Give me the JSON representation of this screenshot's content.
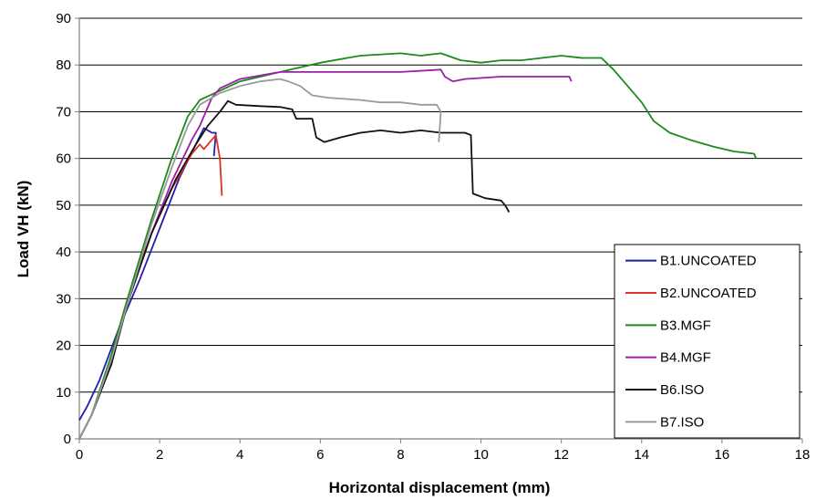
{
  "chart_data": {
    "type": "line",
    "xlabel": "Horizontal displacement (mm)",
    "ylabel": "Load VH (kN)",
    "xlim": [
      0,
      18
    ],
    "ylim": [
      0,
      90
    ],
    "xticks": [
      0,
      2,
      4,
      6,
      8,
      10,
      12,
      14,
      16,
      18
    ],
    "yticks": [
      0,
      10,
      20,
      30,
      40,
      50,
      60,
      70,
      80,
      90
    ],
    "grid": "horizontal",
    "legend_position": "bottom-right",
    "series": [
      {
        "name": "B1.UNCOATED",
        "color": "#1f1fa8",
        "points": [
          [
            0.0,
            4.0
          ],
          [
            0.2,
            7.0
          ],
          [
            0.5,
            12.5
          ],
          [
            1.0,
            24.0
          ],
          [
            1.5,
            34.0
          ],
          [
            2.0,
            45.0
          ],
          [
            2.5,
            56.0
          ],
          [
            2.9,
            63.0
          ],
          [
            3.1,
            66.5
          ],
          [
            3.3,
            65.5
          ],
          [
            3.4,
            65.5
          ],
          [
            3.35,
            60.5
          ]
        ]
      },
      {
        "name": "B2.UNCOATED",
        "color": "#e0302a",
        "points": [
          [
            0.0,
            0.0
          ],
          [
            0.3,
            5.0
          ],
          [
            0.7,
            14.0
          ],
          [
            1.2,
            30.0
          ],
          [
            1.8,
            44.0
          ],
          [
            2.3,
            53.5
          ],
          [
            2.8,
            61.0
          ],
          [
            3.0,
            63.0
          ],
          [
            3.1,
            62.0
          ],
          [
            3.3,
            64.0
          ],
          [
            3.4,
            65.0
          ],
          [
            3.5,
            60.0
          ],
          [
            3.55,
            52.0
          ]
        ]
      },
      {
        "name": "B3.MGF",
        "color": "#1a8a1a",
        "points": [
          [
            0.0,
            0.0
          ],
          [
            0.3,
            5.0
          ],
          [
            0.8,
            18.0
          ],
          [
            1.2,
            30.0
          ],
          [
            1.8,
            47.0
          ],
          [
            2.3,
            60.0
          ],
          [
            2.7,
            69.0
          ],
          [
            3.0,
            72.5
          ],
          [
            3.5,
            74.5
          ],
          [
            4.0,
            76.5
          ],
          [
            5.0,
            78.5
          ],
          [
            6.0,
            80.5
          ],
          [
            7.0,
            82.0
          ],
          [
            8.0,
            82.5
          ],
          [
            8.5,
            82.0
          ],
          [
            9.0,
            82.5
          ],
          [
            9.5,
            81.0
          ],
          [
            10.0,
            80.5
          ],
          [
            10.5,
            81.0
          ],
          [
            11.0,
            81.0
          ],
          [
            12.0,
            82.0
          ],
          [
            12.5,
            81.5
          ],
          [
            13.0,
            81.5
          ],
          [
            13.3,
            79.0
          ],
          [
            13.6,
            76.0
          ],
          [
            14.0,
            72.0
          ],
          [
            14.3,
            68.0
          ],
          [
            14.7,
            65.5
          ],
          [
            15.2,
            64.0
          ],
          [
            15.8,
            62.5
          ],
          [
            16.3,
            61.5
          ],
          [
            16.8,
            61.0
          ],
          [
            16.85,
            60.0
          ]
        ]
      },
      {
        "name": "B4.MGF",
        "color": "#9b1fa8",
        "points": [
          [
            0.0,
            0.0
          ],
          [
            0.3,
            5.0
          ],
          [
            0.8,
            16.0
          ],
          [
            1.2,
            29.0
          ],
          [
            1.8,
            44.0
          ],
          [
            2.3,
            55.0
          ],
          [
            2.8,
            64.0
          ],
          [
            3.0,
            67.0
          ],
          [
            3.3,
            73.0
          ],
          [
            3.5,
            75.0
          ],
          [
            4.0,
            77.0
          ],
          [
            5.0,
            78.5
          ],
          [
            6.0,
            78.5
          ],
          [
            7.0,
            78.5
          ],
          [
            8.0,
            78.5
          ],
          [
            9.0,
            79.0
          ],
          [
            9.1,
            77.5
          ],
          [
            9.2,
            77.0
          ],
          [
            9.3,
            76.5
          ],
          [
            9.6,
            77.0
          ],
          [
            10.5,
            77.5
          ],
          [
            11.5,
            77.5
          ],
          [
            12.2,
            77.5
          ],
          [
            12.25,
            76.5
          ]
        ]
      },
      {
        "name": "B6.ISO",
        "color": "#111111",
        "points": [
          [
            0.0,
            0.0
          ],
          [
            0.3,
            5.0
          ],
          [
            0.8,
            16.0
          ],
          [
            1.2,
            29.0
          ],
          [
            1.8,
            44.0
          ],
          [
            2.4,
            55.5
          ],
          [
            2.9,
            63.0
          ],
          [
            3.2,
            67.0
          ],
          [
            3.5,
            70.0
          ],
          [
            3.7,
            72.3
          ],
          [
            3.9,
            71.5
          ],
          [
            4.5,
            71.2
          ],
          [
            5.0,
            71.0
          ],
          [
            5.3,
            70.5
          ],
          [
            5.4,
            68.5
          ],
          [
            5.8,
            68.5
          ],
          [
            5.9,
            64.5
          ],
          [
            6.1,
            63.5
          ],
          [
            6.5,
            64.5
          ],
          [
            7.0,
            65.5
          ],
          [
            7.5,
            66.0
          ],
          [
            8.0,
            65.5
          ],
          [
            8.5,
            66.0
          ],
          [
            9.0,
            65.5
          ],
          [
            9.6,
            65.5
          ],
          [
            9.75,
            65.0
          ],
          [
            9.8,
            52.5
          ],
          [
            10.1,
            51.5
          ],
          [
            10.5,
            51.0
          ],
          [
            10.6,
            50.0
          ],
          [
            10.7,
            48.5
          ]
        ]
      },
      {
        "name": "B7.ISO",
        "color": "#9a9a9a",
        "points": [
          [
            0.0,
            0.0
          ],
          [
            0.3,
            5.0
          ],
          [
            0.8,
            17.0
          ],
          [
            1.2,
            29.0
          ],
          [
            1.8,
            46.0
          ],
          [
            2.3,
            58.0
          ],
          [
            2.7,
            67.0
          ],
          [
            3.0,
            71.5
          ],
          [
            3.5,
            74.0
          ],
          [
            4.0,
            75.5
          ],
          [
            4.5,
            76.5
          ],
          [
            5.0,
            77.0
          ],
          [
            5.2,
            76.5
          ],
          [
            5.5,
            75.5
          ],
          [
            5.8,
            73.5
          ],
          [
            6.2,
            73.0
          ],
          [
            7.0,
            72.5
          ],
          [
            7.5,
            72.0
          ],
          [
            8.0,
            72.0
          ],
          [
            8.5,
            71.5
          ],
          [
            8.9,
            71.5
          ],
          [
            9.0,
            70.0
          ],
          [
            8.95,
            63.5
          ]
        ]
      }
    ]
  }
}
